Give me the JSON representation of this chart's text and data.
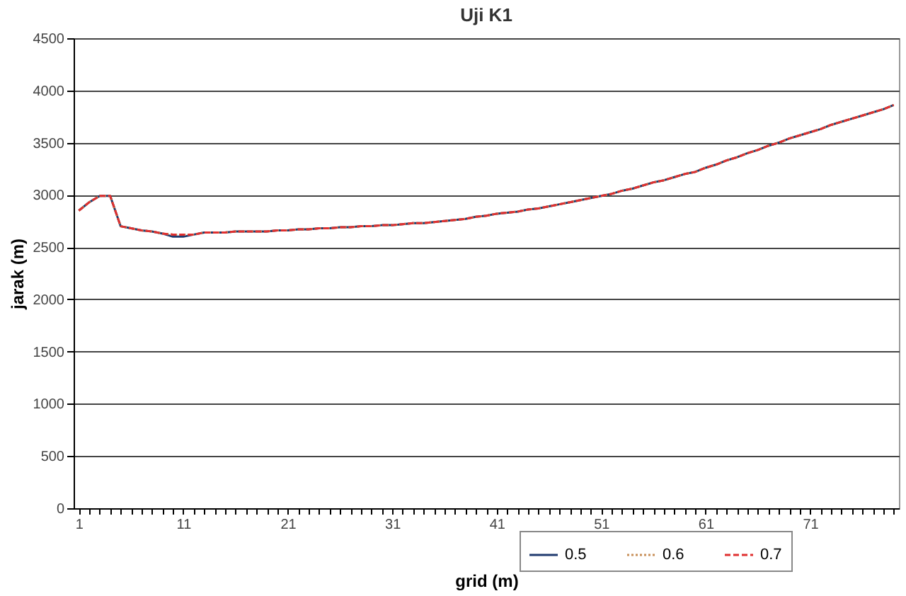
{
  "chart_data": {
    "type": "line",
    "title": "Uji K1",
    "xlabel": "grid (m)",
    "ylabel": "jarak (m)",
    "categories": [
      "1",
      null,
      null,
      null,
      null,
      null,
      null,
      null,
      null,
      null,
      "11",
      null,
      null,
      null,
      null,
      null,
      null,
      null,
      null,
      null,
      "21",
      null,
      null,
      null,
      null,
      null,
      null,
      null,
      null,
      null,
      "31",
      null,
      null,
      null,
      null,
      null,
      null,
      null,
      null,
      null,
      "41",
      null,
      null,
      null,
      null,
      null,
      null,
      null,
      null,
      null,
      "51",
      null,
      null,
      null,
      null,
      null,
      null,
      null,
      null,
      null,
      "61",
      null,
      null,
      null,
      null,
      null,
      null,
      null,
      null,
      null,
      "71",
      null,
      null,
      null,
      null,
      null,
      null,
      null,
      null
    ],
    "series": [
      {
        "name": "0.5",
        "color": "#1f3a6e",
        "line_style": "solid",
        "values": [
          2850,
          2930,
          2990,
          2990,
          2700,
          2680,
          2660,
          2650,
          2630,
          2600,
          2600,
          2620,
          2640,
          2640,
          2640,
          2650,
          2650,
          2650,
          2650,
          2660,
          2660,
          2670,
          2670,
          2680,
          2680,
          2690,
          2690,
          2700,
          2700,
          2710,
          2710,
          2720,
          2730,
          2730,
          2740,
          2750,
          2760,
          2770,
          2790,
          2800,
          2820,
          2830,
          2840,
          2860,
          2870,
          2890,
          2910,
          2930,
          2950,
          2970,
          2990,
          3010,
          3040,
          3060,
          3090,
          3120,
          3140,
          3170,
          3200,
          3220,
          3260,
          3290,
          3330,
          3360,
          3400,
          3430,
          3470,
          3500,
          3540,
          3570,
          3600,
          3630,
          3670,
          3700,
          3730,
          3760,
          3790,
          3820,
          3860
        ]
      },
      {
        "name": "0.6",
        "color": "#c8905a",
        "line_style": "dotted",
        "values": [
          2850,
          2930,
          2990,
          2990,
          2700,
          2680,
          2660,
          2650,
          2630,
          2620,
          2620,
          2620,
          2640,
          2640,
          2640,
          2650,
          2650,
          2650,
          2650,
          2660,
          2660,
          2670,
          2670,
          2680,
          2680,
          2690,
          2690,
          2700,
          2700,
          2710,
          2710,
          2720,
          2730,
          2730,
          2740,
          2750,
          2760,
          2770,
          2790,
          2800,
          2820,
          2830,
          2840,
          2860,
          2870,
          2890,
          2910,
          2930,
          2950,
          2970,
          2990,
          3010,
          3040,
          3060,
          3090,
          3120,
          3140,
          3170,
          3200,
          3220,
          3260,
          3290,
          3330,
          3360,
          3400,
          3430,
          3470,
          3500,
          3540,
          3570,
          3600,
          3630,
          3670,
          3700,
          3730,
          3760,
          3790,
          3820,
          3860
        ]
      },
      {
        "name": "0.7",
        "color": "#e03030",
        "line_style": "dashed",
        "values": [
          2850,
          2930,
          2990,
          2990,
          2700,
          2680,
          2660,
          2650,
          2630,
          2620,
          2620,
          2620,
          2640,
          2640,
          2640,
          2650,
          2650,
          2650,
          2650,
          2660,
          2660,
          2670,
          2670,
          2680,
          2680,
          2690,
          2690,
          2700,
          2700,
          2710,
          2710,
          2720,
          2730,
          2730,
          2740,
          2750,
          2760,
          2770,
          2790,
          2800,
          2820,
          2830,
          2840,
          2860,
          2870,
          2890,
          2910,
          2930,
          2950,
          2970,
          2990,
          3010,
          3040,
          3060,
          3090,
          3120,
          3140,
          3170,
          3200,
          3220,
          3260,
          3290,
          3330,
          3360,
          3400,
          3430,
          3470,
          3500,
          3540,
          3570,
          3600,
          3630,
          3670,
          3700,
          3730,
          3760,
          3790,
          3820,
          3860
        ]
      }
    ],
    "ylim": [
      0,
      4500
    ],
    "yticks": [
      0,
      500,
      1000,
      1500,
      2000,
      2500,
      3000,
      3500,
      4000,
      4500
    ],
    "grid": "y",
    "legend": "bottom right",
    "marker": "none"
  }
}
